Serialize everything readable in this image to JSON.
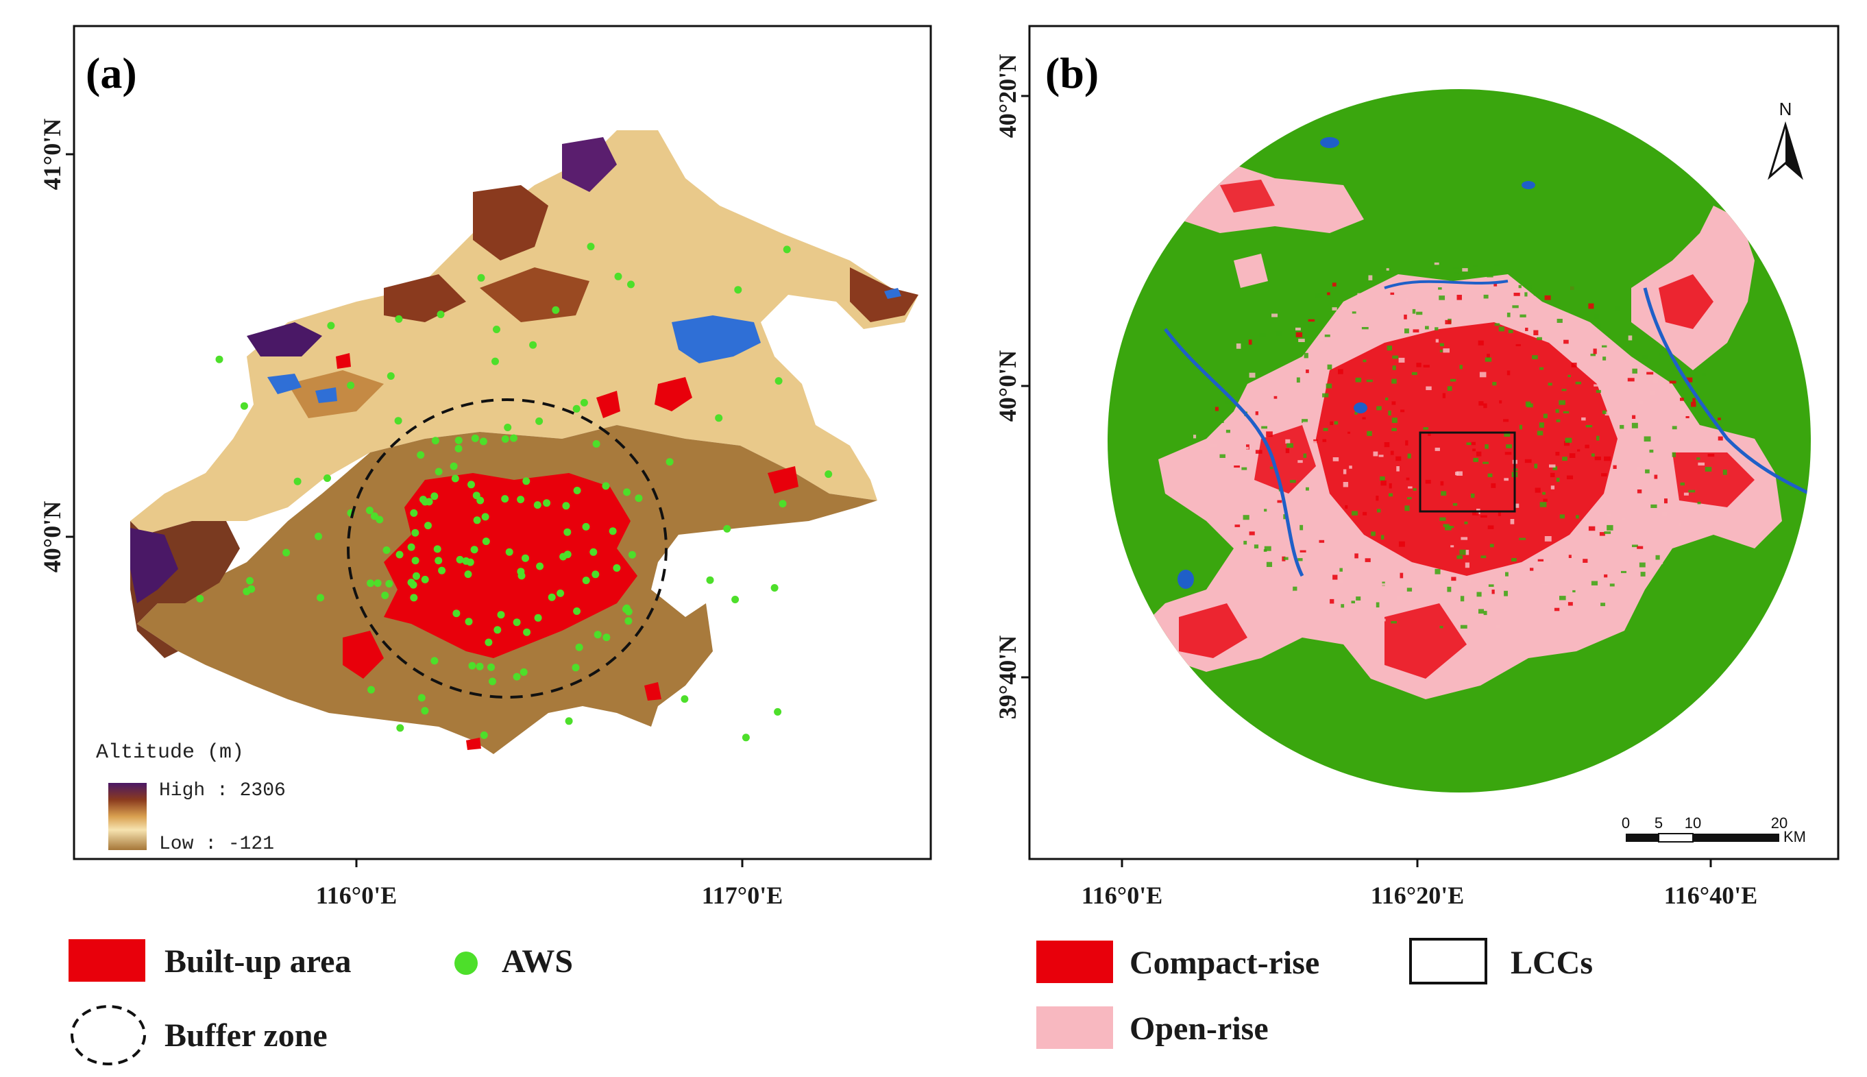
{
  "panel_a": {
    "label": "(a)",
    "lat_ticks": [
      "41°0'N",
      "40°0'N"
    ],
    "lon_ticks": [
      "116°0'E",
      "117°0'E"
    ],
    "altitude_legend": {
      "title": "Altitude (m)",
      "high_label": "High : 2306",
      "low_label": "Low : -121",
      "high_value": 2306,
      "low_value": -121
    },
    "colors": {
      "built_up": "#e8000b",
      "aws": "#4ddf2a",
      "water": "#2f6fd6",
      "low_terrain": "#a67a3c",
      "mid_terrain": "#f1d9a0",
      "high_terrain": "#5a1e6e"
    }
  },
  "panel_b": {
    "label": "(b)",
    "lat_ticks": [
      "40°20'N",
      "40°0'N",
      "39°40'N"
    ],
    "lon_ticks": [
      "116°0'E",
      "116°20'E",
      "116°40'E"
    ],
    "north_label": "N",
    "scale_bar": {
      "ticks": [
        "0",
        "5",
        "10",
        "20"
      ],
      "unit": "KM"
    },
    "colors": {
      "background_land": "#3aa60e",
      "compact_rise": "#e8000b",
      "open_rise": "#f8b8c0",
      "water": "#1f5fc8"
    }
  },
  "legend": {
    "built_up_area": "Built-up area",
    "aws": "AWS",
    "buffer_zone": "Buffer zone",
    "compact_rise": "Compact-rise",
    "lccs": "LCCs",
    "open_rise": "Open-rise"
  }
}
